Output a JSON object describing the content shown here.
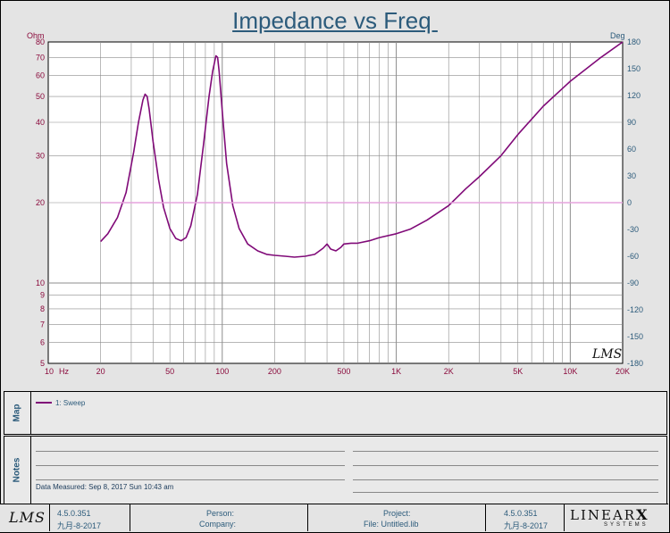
{
  "header": {
    "title": "Impedance vs Freq "
  },
  "chart_data": {
    "type": "line",
    "title": "Impedance vs Freq",
    "x_scale": "log",
    "y_left_scale": "log",
    "xlim": [
      10,
      20000
    ],
    "ylim_left": [
      5,
      80
    ],
    "ylim_right": [
      -180,
      180
    ],
    "ylabel_left": "Ohm",
    "ylabel_right": "Deg",
    "x_unit": "Hz",
    "grid": true,
    "x_ticks": [
      "10",
      "20",
      "50",
      "100",
      "200",
      "500",
      "1K",
      "2K",
      "5K",
      "10K",
      "20K"
    ],
    "x_tick_values": [
      10,
      20,
      50,
      100,
      200,
      500,
      1000,
      2000,
      5000,
      10000,
      20000
    ],
    "y_left_ticks": [
      "5",
      "6",
      "7",
      "8",
      "9",
      "10",
      "20",
      "30",
      "40",
      "50",
      "60",
      "70",
      "80"
    ],
    "y_left_tick_values": [
      5,
      6,
      7,
      8,
      9,
      10,
      20,
      30,
      40,
      50,
      60,
      70,
      80
    ],
    "y_right_ticks": [
      "180",
      "150",
      "120",
      "90",
      "60",
      "30",
      "0",
      "-30",
      "-60",
      "-90",
      "-120",
      "-150",
      "-180"
    ],
    "y_right_tick_values": [
      180,
      150,
      120,
      90,
      60,
      30,
      0,
      -30,
      -60,
      -90,
      -120,
      -150,
      -180
    ],
    "series": [
      {
        "name": "1: Sweep",
        "color": "#800a78",
        "axis": "left",
        "x": [
          20,
          22,
          25,
          28,
          31,
          33,
          35,
          36,
          37,
          38,
          40,
          43,
          46,
          50,
          54,
          58,
          62,
          66,
          72,
          78,
          84,
          88,
          92,
          94,
          96,
          100,
          106,
          115,
          125,
          140,
          160,
          180,
          200,
          230,
          260,
          300,
          340,
          380,
          400,
          420,
          450,
          480,
          500,
          550,
          600,
          700,
          800,
          1000,
          1200,
          1500,
          2000,
          2500,
          3000,
          4000,
          5000,
          7000,
          10000,
          15000,
          20000
        ],
        "y": [
          14.3,
          15.3,
          17.6,
          21.8,
          31.0,
          40.0,
          48.5,
          51.0,
          50.0,
          45.0,
          34.0,
          24.5,
          19.2,
          16.0,
          14.7,
          14.4,
          14.8,
          16.4,
          21.5,
          33.0,
          50.0,
          62.0,
          71.0,
          70.0,
          62.0,
          44.0,
          28.0,
          19.5,
          16.0,
          14.0,
          13.2,
          12.8,
          12.7,
          12.6,
          12.5,
          12.6,
          12.8,
          13.5,
          14.0,
          13.4,
          13.2,
          13.6,
          14.0,
          14.1,
          14.1,
          14.4,
          14.8,
          15.3,
          15.9,
          17.2,
          19.5,
          22.5,
          25.0,
          30.0,
          36.0,
          46.0,
          57.0,
          70.0,
          80.0
        ]
      },
      {
        "name": "phase",
        "color": "#e6a3dd",
        "axis": "right",
        "x": [
          20,
          20000
        ],
        "y": [
          0,
          0
        ]
      }
    ],
    "annotations": [
      "LMS"
    ]
  },
  "map_panel": {
    "label": "Map",
    "legend": [
      {
        "label": "1: Sweep",
        "color": "#800a78"
      }
    ]
  },
  "notes_panel": {
    "label": "Notes",
    "date_measured": "Data Measured: Sep 8, 2017 Sun 10:43 am"
  },
  "footer": {
    "logo_left": "LMS",
    "version_left": "4.5.0.351",
    "date_left": "九月-8-2017",
    "person_label": "Person:",
    "company_label": "Company:",
    "project_label": "Project:",
    "file_label": "File: Untitled.lib",
    "version_right": "4.5.0.351",
    "date_right": "九月-8-2017",
    "brand_top": "LINEAR",
    "brand_x": "X",
    "brand_sub": "SYSTEMS"
  }
}
